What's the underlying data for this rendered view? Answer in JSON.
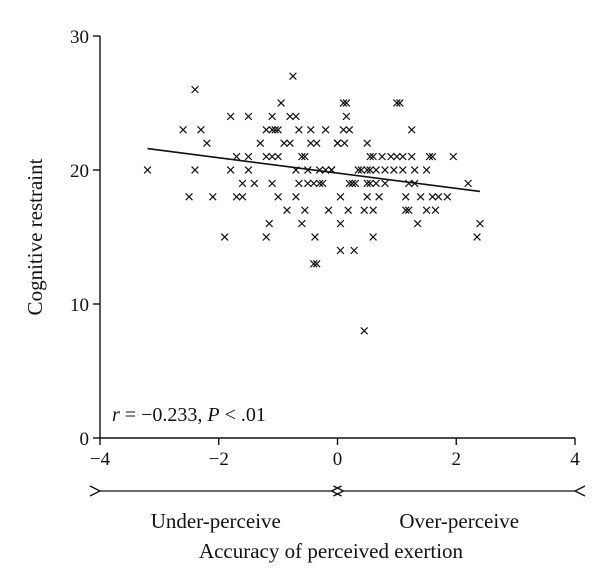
{
  "chart_data": {
    "type": "scatter",
    "xlabel": "Accuracy of perceived exertion",
    "ylabel": "Cognitive restraint",
    "xlim": [
      -4,
      4
    ],
    "ylim": [
      0,
      30
    ],
    "x_ticks": [
      "−4",
      "−2",
      "0",
      "2",
      "4"
    ],
    "y_ticks": [
      "0",
      "10",
      "20",
      "30"
    ],
    "grid": false,
    "marker": "×",
    "annotation": {
      "r_symbol": "r",
      "r_value": " = −0.233, ",
      "p_symbol": "P",
      "p_value": " < .01"
    },
    "regions": [
      {
        "label": "Under-perceive",
        "x_from": -4,
        "x_to": -0.1
      },
      {
        "label": "Over-perceive",
        "x_from": 0.1,
        "x_to": 4
      }
    ],
    "trend_line": {
      "x": [
        -3.2,
        2.4
      ],
      "y": [
        21.6,
        18.4
      ]
    },
    "points": [
      [
        -3.2,
        20
      ],
      [
        -2.6,
        23
      ],
      [
        -2.5,
        18
      ],
      [
        -2.4,
        26
      ],
      [
        -2.4,
        20
      ],
      [
        -2.3,
        23
      ],
      [
        -2.2,
        22
      ],
      [
        -2.1,
        18
      ],
      [
        -1.9,
        15
      ],
      [
        -1.8,
        24
      ],
      [
        -1.8,
        20
      ],
      [
        -1.7,
        18
      ],
      [
        -1.7,
        21
      ],
      [
        -1.6,
        18
      ],
      [
        -1.6,
        19
      ],
      [
        -1.5,
        24
      ],
      [
        -1.5,
        21
      ],
      [
        -1.5,
        20
      ],
      [
        -1.4,
        19
      ],
      [
        -1.3,
        22
      ],
      [
        -1.2,
        23
      ],
      [
        -1.2,
        21
      ],
      [
        -1.2,
        15
      ],
      [
        -1.15,
        16
      ],
      [
        -1.1,
        24
      ],
      [
        -1.1,
        23
      ],
      [
        -1.1,
        21
      ],
      [
        -1.1,
        19
      ],
      [
        -1.05,
        23
      ],
      [
        -1.0,
        23
      ],
      [
        -1.0,
        21
      ],
      [
        -1.0,
        18
      ],
      [
        -0.95,
        25
      ],
      [
        -0.9,
        22
      ],
      [
        -0.85,
        17
      ],
      [
        -0.8,
        24
      ],
      [
        -0.8,
        22
      ],
      [
        -0.75,
        27
      ],
      [
        -0.7,
        20
      ],
      [
        -0.7,
        18
      ],
      [
        -0.7,
        24
      ],
      [
        -0.65,
        23
      ],
      [
        -0.65,
        19
      ],
      [
        -0.6,
        16
      ],
      [
        -0.6,
        21
      ],
      [
        -0.55,
        17
      ],
      [
        -0.55,
        21
      ],
      [
        -0.5,
        20
      ],
      [
        -0.5,
        19
      ],
      [
        -0.45,
        23
      ],
      [
        -0.45,
        22
      ],
      [
        -0.4,
        19
      ],
      [
        -0.4,
        13
      ],
      [
        -0.38,
        15
      ],
      [
        -0.35,
        13
      ],
      [
        -0.35,
        22
      ],
      [
        -0.3,
        20
      ],
      [
        -0.3,
        19
      ],
      [
        -0.25,
        19
      ],
      [
        -0.2,
        20
      ],
      [
        -0.2,
        23
      ],
      [
        -0.15,
        17
      ],
      [
        -0.1,
        20
      ],
      [
        -0.1,
        20
      ],
      [
        0.0,
        22
      ],
      [
        0.0,
        22
      ],
      [
        0.05,
        14
      ],
      [
        0.05,
        18
      ],
      [
        0.05,
        16
      ],
      [
        0.1,
        25
      ],
      [
        0.1,
        23
      ],
      [
        0.12,
        22
      ],
      [
        0.15,
        24
      ],
      [
        0.15,
        25
      ],
      [
        0.18,
        17
      ],
      [
        0.2,
        23
      ],
      [
        0.2,
        19
      ],
      [
        0.25,
        19
      ],
      [
        0.28,
        14
      ],
      [
        0.3,
        19
      ],
      [
        0.35,
        20
      ],
      [
        0.4,
        20
      ],
      [
        0.45,
        17
      ],
      [
        0.5,
        19
      ],
      [
        0.5,
        20
      ],
      [
        0.5,
        22
      ],
      [
        0.5,
        18
      ],
      [
        0.55,
        19
      ],
      [
        0.55,
        20
      ],
      [
        0.55,
        21
      ],
      [
        0.6,
        15
      ],
      [
        0.6,
        17
      ],
      [
        0.6,
        21
      ],
      [
        0.65,
        19
      ],
      [
        0.65,
        20
      ],
      [
        0.7,
        18
      ],
      [
        0.75,
        21
      ],
      [
        0.8,
        19
      ],
      [
        0.8,
        20
      ],
      [
        0.9,
        21
      ],
      [
        0.95,
        20
      ],
      [
        1.0,
        25
      ],
      [
        1.0,
        21
      ],
      [
        1.05,
        25
      ],
      [
        1.1,
        21
      ],
      [
        1.1,
        20
      ],
      [
        1.15,
        18
      ],
      [
        1.15,
        17
      ],
      [
        1.2,
        19
      ],
      [
        1.2,
        17
      ],
      [
        1.25,
        23
      ],
      [
        1.25,
        21
      ],
      [
        1.3,
        19
      ],
      [
        1.3,
        20
      ],
      [
        1.35,
        16
      ],
      [
        1.4,
        18
      ],
      [
        1.5,
        17
      ],
      [
        1.5,
        20
      ],
      [
        1.55,
        21
      ],
      [
        1.6,
        21
      ],
      [
        1.6,
        18
      ],
      [
        1.65,
        17
      ],
      [
        1.7,
        18
      ],
      [
        1.85,
        18
      ],
      [
        1.95,
        21
      ],
      [
        2.2,
        19
      ],
      [
        2.35,
        15
      ],
      [
        2.4,
        16
      ],
      [
        0.45,
        8
      ]
    ]
  }
}
